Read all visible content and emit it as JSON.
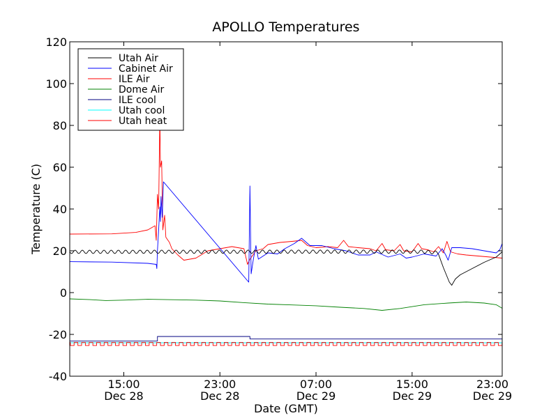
{
  "chart_data": {
    "type": "line",
    "title": "APOLLO Temperatures",
    "xlabel": "Date (GMT)",
    "ylabel": "Temperature (C)",
    "x_unit": "hours since Dec 28 00:00 GMT",
    "xlim": [
      10.5,
      46.5
    ],
    "ylim": [
      -40,
      120
    ],
    "yticks": [
      -40,
      -20,
      0,
      20,
      40,
      60,
      80,
      100,
      120
    ],
    "xticks": [
      {
        "x": 15,
        "time": "15:00",
        "date": "Dec 28"
      },
      {
        "x": 23,
        "time": "23:00",
        "date": "Dec 28"
      },
      {
        "x": 31,
        "time": "07:00",
        "date": "Dec 29"
      },
      {
        "x": 39,
        "time": "15:00",
        "date": "Dec 29"
      },
      {
        "x": 47,
        "time": "23:00",
        "date": "Dec 29"
      }
    ],
    "legend_position": "top-left",
    "series": [
      {
        "name": "Utah Air",
        "color": "#000000",
        "pattern": "oscillate",
        "amplitude": 0.8,
        "period": 0.6,
        "points": [
          [
            10.5,
            19.5
          ],
          [
            35.0,
            19.6
          ],
          [
            40.0,
            19.6
          ],
          [
            41.2,
            19.0
          ],
          [
            41.6,
            12.0
          ],
          [
            42.1,
            5.0
          ],
          [
            42.3,
            3.5
          ],
          [
            42.6,
            6.5
          ],
          [
            43.0,
            8.5
          ],
          [
            44.0,
            11.5
          ],
          [
            45.0,
            14.5
          ],
          [
            46.0,
            17.0
          ],
          [
            46.5,
            19.5
          ]
        ]
      },
      {
        "name": "Cabinet Air",
        "color": "#0000ff",
        "points": [
          [
            10.5,
            14.8
          ],
          [
            14.0,
            14.6
          ],
          [
            17.0,
            14.0
          ],
          [
            17.7,
            13.5
          ],
          [
            17.75,
            11.5
          ],
          [
            17.8,
            20.0
          ],
          [
            17.9,
            30.0
          ],
          [
            18.0,
            41.0
          ],
          [
            18.05,
            34.0
          ],
          [
            18.1,
            46.0
          ],
          [
            18.2,
            36.0
          ],
          [
            18.3,
            53.0
          ],
          [
            25.4,
            5.0
          ],
          [
            25.5,
            51.0
          ],
          [
            25.6,
            9.0
          ],
          [
            25.8,
            16.5
          ],
          [
            26.0,
            22.5
          ],
          [
            26.2,
            16.0
          ],
          [
            26.6,
            17.5
          ],
          [
            27.0,
            19.0
          ],
          [
            27.8,
            18.5
          ],
          [
            28.4,
            21.0
          ],
          [
            29.2,
            23.5
          ],
          [
            29.8,
            26.0
          ],
          [
            30.5,
            22.5
          ],
          [
            31.5,
            22.5
          ],
          [
            32.5,
            21.0
          ],
          [
            33.5,
            20.0
          ],
          [
            34.5,
            18.0
          ],
          [
            35.5,
            18.0
          ],
          [
            36.0,
            19.5
          ],
          [
            37.0,
            17.0
          ],
          [
            38.0,
            18.5
          ],
          [
            38.5,
            16.5
          ],
          [
            39.0,
            17.0
          ],
          [
            40.0,
            18.5
          ],
          [
            41.0,
            17.5
          ],
          [
            41.5,
            21.0
          ],
          [
            41.8,
            18.0
          ],
          [
            42.0,
            15.5
          ],
          [
            42.3,
            21.5
          ],
          [
            43.0,
            21.5
          ],
          [
            44.0,
            21.0
          ],
          [
            45.0,
            20.0
          ],
          [
            46.0,
            19.0
          ],
          [
            46.3,
            20.5
          ],
          [
            46.5,
            23.5
          ]
        ]
      },
      {
        "name": "ILE Air",
        "color": "#ff0000",
        "points": [
          [
            10.5,
            28.0
          ],
          [
            14.0,
            28.1
          ],
          [
            16.0,
            28.8
          ],
          [
            17.0,
            30.0
          ],
          [
            17.6,
            32.0
          ],
          [
            17.7,
            25.0
          ],
          [
            17.8,
            47.0
          ],
          [
            17.9,
            40.0
          ],
          [
            18.0,
            85.0
          ],
          [
            18.05,
            60.0
          ],
          [
            18.15,
            63.0
          ],
          [
            18.25,
            30.0
          ],
          [
            18.4,
            37.0
          ],
          [
            18.5,
            26.5
          ],
          [
            18.8,
            24.0
          ],
          [
            19.0,
            21.0
          ],
          [
            19.5,
            18.0
          ],
          [
            20.0,
            15.5
          ],
          [
            21.0,
            16.5
          ],
          [
            22.0,
            20.0
          ],
          [
            23.0,
            21.0
          ],
          [
            24.0,
            22.0
          ],
          [
            25.0,
            21.0
          ],
          [
            25.3,
            13.5
          ],
          [
            25.5,
            16.0
          ],
          [
            26.0,
            20.0
          ],
          [
            26.6,
            21.0
          ],
          [
            27.0,
            23.0
          ],
          [
            28.0,
            24.0
          ],
          [
            29.0,
            24.5
          ],
          [
            29.8,
            25.0
          ],
          [
            30.3,
            22.5
          ],
          [
            31.0,
            21.5
          ],
          [
            32.0,
            22.0
          ],
          [
            32.8,
            21.5
          ],
          [
            33.3,
            25.0
          ],
          [
            33.7,
            22.0
          ],
          [
            34.5,
            21.5
          ],
          [
            35.5,
            21.0
          ],
          [
            36.0,
            20.0
          ],
          [
            36.5,
            23.5
          ],
          [
            36.8,
            20.5
          ],
          [
            37.5,
            20.0
          ],
          [
            38.0,
            23.0
          ],
          [
            38.3,
            20.0
          ],
          [
            39.0,
            19.5
          ],
          [
            39.5,
            23.5
          ],
          [
            39.8,
            21.0
          ],
          [
            40.3,
            20.5
          ],
          [
            40.8,
            19.5
          ],
          [
            41.2,
            22.0
          ],
          [
            41.6,
            19.0
          ],
          [
            41.9,
            24.5
          ],
          [
            42.2,
            19.5
          ],
          [
            42.8,
            18.5
          ],
          [
            43.5,
            18.0
          ],
          [
            44.5,
            17.5
          ],
          [
            45.5,
            17.0
          ],
          [
            46.5,
            16.5
          ]
        ]
      },
      {
        "name": "Dome Air",
        "color": "#008000",
        "points": [
          [
            10.5,
            -3.0
          ],
          [
            12.0,
            -3.3
          ],
          [
            13.5,
            -3.8
          ],
          [
            15.0,
            -3.6
          ],
          [
            17.0,
            -3.2
          ],
          [
            19.0,
            -3.4
          ],
          [
            21.0,
            -3.6
          ],
          [
            23.0,
            -4.0
          ],
          [
            25.0,
            -4.8
          ],
          [
            27.0,
            -5.5
          ],
          [
            29.0,
            -5.9
          ],
          [
            31.0,
            -6.3
          ],
          [
            33.0,
            -7.0
          ],
          [
            35.0,
            -7.6
          ],
          [
            36.5,
            -8.5
          ],
          [
            38.0,
            -7.6
          ],
          [
            40.0,
            -5.8
          ],
          [
            42.0,
            -5.0
          ],
          [
            43.5,
            -4.5
          ],
          [
            45.0,
            -5.0
          ],
          [
            46.0,
            -5.8
          ],
          [
            46.5,
            -7.5
          ]
        ]
      },
      {
        "name": "ILE cool",
        "color": "#000080",
        "points": [
          [
            10.5,
            -23.2
          ],
          [
            17.8,
            -23.2
          ],
          [
            17.8,
            -21.0
          ],
          [
            25.5,
            -21.0
          ],
          [
            25.5,
            -22.2
          ],
          [
            46.5,
            -22.2
          ]
        ]
      },
      {
        "name": "Utah cool",
        "color": "#00ffff",
        "points": [
          [
            10.5,
            -24.0
          ],
          [
            46.5,
            -24.0
          ]
        ]
      },
      {
        "name": "Utah heat",
        "color": "#ff0000",
        "pattern": "pulse",
        "base": -23.8,
        "low": -25.3,
        "period": 0.625,
        "duty": 0.5,
        "points": [
          [
            10.5,
            -23.8
          ],
          [
            46.5,
            -23.8
          ]
        ]
      }
    ]
  }
}
